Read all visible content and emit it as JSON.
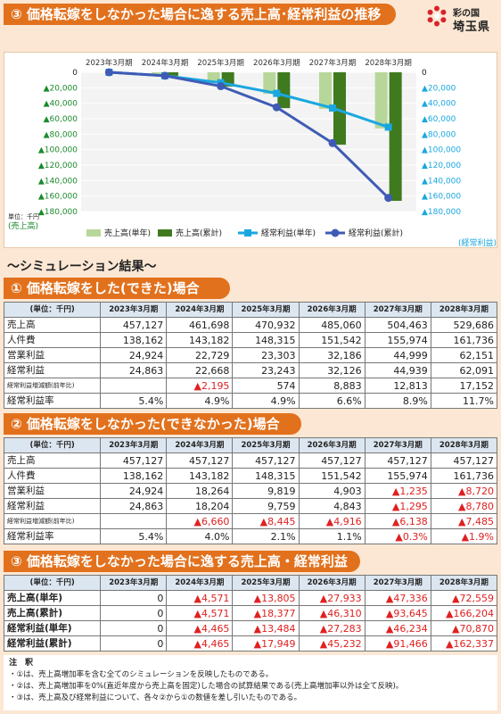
{
  "header": {
    "title": "③ 価格転嫁をしなかった場合に逸する売上高･経常利益の推移",
    "logo_line1": "彩の国",
    "logo_line2": "埼玉県"
  },
  "colors": {
    "accent": "#e2711d",
    "single_bar": "#b7d79a",
    "cumulative_bar": "#3f7a1f",
    "single_line": "#1aa7e0",
    "cumulative_line": "#3f5bb5",
    "negative": "#e02020",
    "table_header": "#dce6f0",
    "background": "#fbe7d3"
  },
  "chart_data": {
    "type": "bar",
    "categories": [
      "2023年3月期",
      "2024年3月期",
      "2025年3月期",
      "2026年3月期",
      "2027年3月期",
      "2028年3月期"
    ],
    "series": [
      {
        "name": "売上高(単年)",
        "type": "bar",
        "values": [
          0,
          -4571,
          -13805,
          -27933,
          -47336,
          -72559
        ]
      },
      {
        "name": "売上高(累計)",
        "type": "bar",
        "values": [
          0,
          -4571,
          -18377,
          -46310,
          -93645,
          -166204
        ]
      },
      {
        "name": "経常利益(単年)",
        "type": "line",
        "values": [
          0,
          -4465,
          -13484,
          -27283,
          -46234,
          -70870
        ]
      },
      {
        "name": "経常利益(累計)",
        "type": "line",
        "values": [
          0,
          -4465,
          -17949,
          -45232,
          -91466,
          -162337
        ]
      }
    ],
    "ylim": [
      -180000,
      0
    ],
    "left_ticks": [
      "0",
      "▲20,000",
      "▲40,000",
      "▲60,000",
      "▲80,000",
      "▲100,000",
      "▲120,000",
      "▲140,000",
      "▲160,000",
      "▲180,000"
    ],
    "right_ticks": [
      "0",
      "▲20,000",
      "▲40,000",
      "▲60,000",
      "▲80,000",
      "▲100,000",
      "▲120,000",
      "▲140,000",
      "▲160,000",
      "▲180,000"
    ],
    "unit_label": "単位：千円",
    "ylabel_left": "(売上高)",
    "ylabel_right": "(経常利益)",
    "legend_position": "bottom",
    "grid": true
  },
  "simulation_title": "～シミュレーション結果～",
  "columns": [
    "(単位：千円)",
    "2023年3月期",
    "2024年3月期",
    "2025年3月期",
    "2026年3月期",
    "2027年3月期",
    "2028年3月期"
  ],
  "section1": {
    "title": "① 価格転嫁をした(できた)場合",
    "rows": [
      {
        "label": "売上高",
        "cells": [
          "457,127",
          "461,698",
          "470,932",
          "485,060",
          "504,463",
          "529,686"
        ],
        "neg": [
          false,
          false,
          false,
          false,
          false,
          false
        ]
      },
      {
        "label": "人件費",
        "cells": [
          "138,162",
          "143,182",
          "148,315",
          "151,542",
          "155,974",
          "161,736"
        ],
        "neg": [
          false,
          false,
          false,
          false,
          false,
          false
        ]
      },
      {
        "label": "営業利益",
        "cells": [
          "24,924",
          "22,729",
          "23,303",
          "32,186",
          "44,999",
          "62,151"
        ],
        "neg": [
          false,
          false,
          false,
          false,
          false,
          false
        ]
      },
      {
        "label": "経常利益",
        "cells": [
          "24,863",
          "22,668",
          "23,243",
          "32,126",
          "44,939",
          "62,091"
        ],
        "neg": [
          false,
          false,
          false,
          false,
          false,
          false
        ]
      },
      {
        "label": "経常利益増減額(前年比)",
        "small": true,
        "cells": [
          "",
          "▲2,195",
          "574",
          "8,883",
          "12,813",
          "17,152"
        ],
        "neg": [
          false,
          true,
          false,
          false,
          false,
          false
        ]
      },
      {
        "label": "経常利益率",
        "cells": [
          "5.4%",
          "4.9%",
          "4.9%",
          "6.6%",
          "8.9%",
          "11.7%"
        ],
        "neg": [
          false,
          false,
          false,
          false,
          false,
          false
        ]
      }
    ]
  },
  "section2": {
    "title": "② 価格転嫁をしなかった(できなかった)場合",
    "rows": [
      {
        "label": "売上高",
        "cells": [
          "457,127",
          "457,127",
          "457,127",
          "457,127",
          "457,127",
          "457,127"
        ],
        "neg": [
          false,
          false,
          false,
          false,
          false,
          false
        ]
      },
      {
        "label": "人件費",
        "cells": [
          "138,162",
          "143,182",
          "148,315",
          "151,542",
          "155,974",
          "161,736"
        ],
        "neg": [
          false,
          false,
          false,
          false,
          false,
          false
        ]
      },
      {
        "label": "営業利益",
        "cells": [
          "24,924",
          "18,264",
          "9,819",
          "4,903",
          "▲1,235",
          "▲8,720"
        ],
        "neg": [
          false,
          false,
          false,
          false,
          true,
          true
        ]
      },
      {
        "label": "経常利益",
        "cells": [
          "24,863",
          "18,204",
          "9,759",
          "4,843",
          "▲1,295",
          "▲8,780"
        ],
        "neg": [
          false,
          false,
          false,
          false,
          true,
          true
        ]
      },
      {
        "label": "経常利益増減額(前年比)",
        "small": true,
        "cells": [
          "",
          "▲6,660",
          "▲8,445",
          "▲4,916",
          "▲6,138",
          "▲7,485"
        ],
        "neg": [
          false,
          true,
          true,
          true,
          true,
          true
        ]
      },
      {
        "label": "経常利益率",
        "cells": [
          "5.4%",
          "4.0%",
          "2.1%",
          "1.1%",
          "▲0.3%",
          "▲1.9%"
        ],
        "neg": [
          false,
          false,
          false,
          false,
          true,
          true
        ]
      }
    ]
  },
  "section3": {
    "title": "③ 価格転嫁をしなかった場合に逸する売上高・経常利益",
    "rows": [
      {
        "label": "売上高(単年)",
        "bold": true,
        "cells": [
          "0",
          "▲4,571",
          "▲13,805",
          "▲27,933",
          "▲47,336",
          "▲72,559"
        ],
        "neg": [
          false,
          true,
          true,
          true,
          true,
          true
        ]
      },
      {
        "label": "売上高(累計)",
        "bold": true,
        "cells": [
          "0",
          "▲4,571",
          "▲18,377",
          "▲46,310",
          "▲93,645",
          "▲166,204"
        ],
        "neg": [
          false,
          true,
          true,
          true,
          true,
          true
        ]
      },
      {
        "label": "経常利益(単年)",
        "bold": true,
        "cells": [
          "0",
          "▲4,465",
          "▲13,484",
          "▲27,283",
          "▲46,234",
          "▲70,870"
        ],
        "neg": [
          false,
          true,
          true,
          true,
          true,
          true
        ]
      },
      {
        "label": "経常利益(累計)",
        "bold": true,
        "cells": [
          "0",
          "▲4,465",
          "▲17,949",
          "▲45,232",
          "▲91,466",
          "▲162,337"
        ],
        "neg": [
          false,
          true,
          true,
          true,
          true,
          true
        ]
      }
    ]
  },
  "notes": {
    "title": "注　釈",
    "lines": [
      "・①は、売上高増加率を含む全てのシミュレーションを反映したものである。",
      "・②は、売上高増加率を0%(直近年度から売上高を固定)した場合の試算結果である(売上高増加率以外は全て反映)。",
      "・③は、売上高及び経常利益について、各々②から①の数値を差し引いたものである。"
    ]
  }
}
